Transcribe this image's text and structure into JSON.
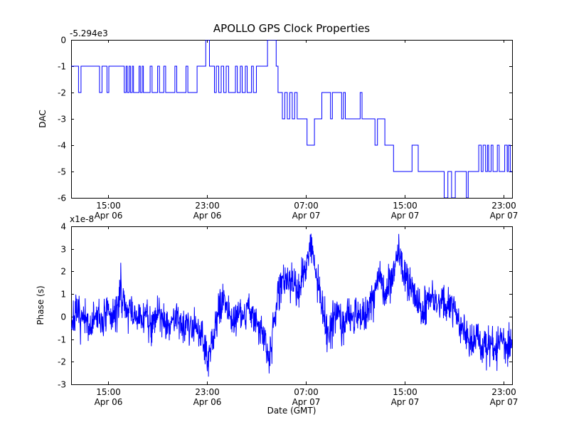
{
  "chart_data": [
    {
      "type": "line",
      "line_style": "step",
      "title": "APOLLO GPS Clock Properties",
      "ylabel": "DAC",
      "axis_offset_label": "-5.294e3",
      "line_color": "#0000ff",
      "xlim": [
        0,
        35.7
      ],
      "ylim": [
        -6,
        0
      ],
      "yticks": [
        0,
        -1,
        -2,
        -3,
        -4,
        -5,
        -6
      ],
      "xticks": [
        {
          "x": 3,
          "time": "15:00",
          "date": "Apr 06"
        },
        {
          "x": 11,
          "time": "23:00",
          "date": "Apr 06"
        },
        {
          "x": 19,
          "time": "07:00",
          "date": "Apr 07"
        },
        {
          "x": 27,
          "time": "15:00",
          "date": "Apr 07"
        },
        {
          "x": 35,
          "time": "23:00",
          "date": "Apr 07"
        }
      ],
      "steps": [
        [
          0,
          -1
        ],
        [
          0.6,
          -2
        ],
        [
          0.8,
          -1
        ],
        [
          2.3,
          -2
        ],
        [
          2.5,
          -1
        ],
        [
          2.9,
          -2
        ],
        [
          3.05,
          -1
        ],
        [
          4.3,
          -2
        ],
        [
          4.45,
          -1
        ],
        [
          4.55,
          -2
        ],
        [
          4.7,
          -1
        ],
        [
          4.8,
          -2
        ],
        [
          4.95,
          -1
        ],
        [
          5.05,
          -2
        ],
        [
          5.5,
          -1
        ],
        [
          5.6,
          -2
        ],
        [
          5.75,
          -1
        ],
        [
          5.85,
          -2
        ],
        [
          6.4,
          -1
        ],
        [
          6.55,
          -2
        ],
        [
          7.0,
          -1
        ],
        [
          7.15,
          -2
        ],
        [
          7.5,
          -1
        ],
        [
          7.65,
          -2
        ],
        [
          8.4,
          -1
        ],
        [
          8.55,
          -2
        ],
        [
          9.3,
          -1
        ],
        [
          9.45,
          -2
        ],
        [
          10.2,
          -1
        ],
        [
          10.9,
          0
        ],
        [
          11.2,
          -1
        ],
        [
          11.6,
          -2
        ],
        [
          11.75,
          -1
        ],
        [
          11.95,
          -2
        ],
        [
          12.15,
          -1
        ],
        [
          12.35,
          -2
        ],
        [
          12.55,
          -1
        ],
        [
          12.75,
          -2
        ],
        [
          13.3,
          -1
        ],
        [
          13.45,
          -2
        ],
        [
          13.7,
          -1
        ],
        [
          13.85,
          -2
        ],
        [
          14.1,
          -1
        ],
        [
          14.25,
          -2
        ],
        [
          14.6,
          -1
        ],
        [
          14.75,
          -2
        ],
        [
          15.0,
          -1
        ],
        [
          15.9,
          0
        ],
        [
          16.6,
          -1
        ],
        [
          16.75,
          -2
        ],
        [
          17.1,
          -3
        ],
        [
          17.3,
          -2
        ],
        [
          17.5,
          -3
        ],
        [
          17.7,
          -2
        ],
        [
          17.9,
          -3
        ],
        [
          18.1,
          -2
        ],
        [
          18.3,
          -3
        ],
        [
          19.1,
          -4
        ],
        [
          19.7,
          -3
        ],
        [
          20.3,
          -2
        ],
        [
          21.0,
          -3
        ],
        [
          21.15,
          -2
        ],
        [
          21.9,
          -3
        ],
        [
          22.05,
          -2
        ],
        [
          22.2,
          -3
        ],
        [
          23.4,
          -2
        ],
        [
          23.55,
          -3
        ],
        [
          24.6,
          -4
        ],
        [
          24.8,
          -3
        ],
        [
          25.4,
          -4
        ],
        [
          26.1,
          -5
        ],
        [
          27.6,
          -4
        ],
        [
          28.1,
          -5
        ],
        [
          30.2,
          -6
        ],
        [
          30.5,
          -5
        ],
        [
          30.8,
          -6
        ],
        [
          31.1,
          -5
        ],
        [
          32.0,
          -6
        ],
        [
          32.15,
          -5
        ],
        [
          33.0,
          -4
        ],
        [
          33.2,
          -5
        ],
        [
          33.35,
          -4
        ],
        [
          33.55,
          -5
        ],
        [
          33.7,
          -4
        ],
        [
          33.8,
          -5
        ],
        [
          34.0,
          -4
        ],
        [
          34.15,
          -5
        ],
        [
          34.5,
          -4
        ],
        [
          34.65,
          -5
        ],
        [
          35.1,
          -4
        ],
        [
          35.3,
          -5
        ],
        [
          35.4,
          -4
        ],
        [
          35.55,
          -5
        ],
        [
          35.7,
          -5
        ]
      ]
    },
    {
      "type": "line",
      "line_style": "noisy",
      "ylabel": "Phase (s)",
      "scale_label": "x1e-8",
      "xlabel": "Date (GMT)",
      "line_color": "#0000ff",
      "xlim": [
        0,
        35.7
      ],
      "ylim": [
        -3,
        4
      ],
      "yticks": [
        4,
        3,
        2,
        1,
        0,
        -1,
        -2,
        -3
      ],
      "xticks": [
        {
          "x": 3,
          "time": "15:00",
          "date": "Apr 06"
        },
        {
          "x": 11,
          "time": "23:00",
          "date": "Apr 06"
        },
        {
          "x": 19,
          "time": "07:00",
          "date": "Apr 07"
        },
        {
          "x": 27,
          "time": "15:00",
          "date": "Apr 07"
        },
        {
          "x": 35,
          "time": "23:00",
          "date": "Apr 07"
        }
      ],
      "base_points": [
        [
          0,
          -0.3
        ],
        [
          0.5,
          0.1
        ],
        [
          1,
          -0.2
        ],
        [
          1.5,
          -0.5
        ],
        [
          2,
          0
        ],
        [
          2.5,
          -0.2
        ],
        [
          3,
          0.1
        ],
        [
          3.5,
          0
        ],
        [
          3.85,
          0.5
        ],
        [
          4,
          1.6
        ],
        [
          4.15,
          0.7
        ],
        [
          4.6,
          0.2
        ],
        [
          5,
          0.1
        ],
        [
          5.5,
          -0.2
        ],
        [
          6,
          0.1
        ],
        [
          6.5,
          -0.3
        ],
        [
          7,
          0.2
        ],
        [
          7.5,
          -0.1
        ],
        [
          8,
          -0.4
        ],
        [
          8.5,
          0
        ],
        [
          9,
          -0.2
        ],
        [
          9.5,
          -0.5
        ],
        [
          10,
          -0.3
        ],
        [
          10.5,
          -0.6
        ],
        [
          11.1,
          -2.1
        ],
        [
          11.5,
          -0.9
        ],
        [
          12,
          0.2
        ],
        [
          12.4,
          1
        ],
        [
          12.8,
          0.2
        ],
        [
          13.2,
          -0.3
        ],
        [
          13.6,
          0.3
        ],
        [
          14,
          0
        ],
        [
          14.4,
          0.5
        ],
        [
          14.8,
          -0.2
        ],
        [
          15.2,
          -0.5
        ],
        [
          15.7,
          -1
        ],
        [
          16,
          -1.9
        ],
        [
          16.3,
          -0.6
        ],
        [
          16.7,
          0.6
        ],
        [
          17.1,
          1.9
        ],
        [
          17.5,
          1.4
        ],
        [
          17.9,
          1.7
        ],
        [
          18.3,
          1.2
        ],
        [
          18.7,
          1.6
        ],
        [
          19.1,
          2.3
        ],
        [
          19.4,
          3.3
        ],
        [
          19.7,
          2.2
        ],
        [
          20,
          1.6
        ],
        [
          20.3,
          0.5
        ],
        [
          20.7,
          -0.7
        ],
        [
          21.1,
          -0.3
        ],
        [
          21.5,
          0.3
        ],
        [
          21.9,
          -0.4
        ],
        [
          22.3,
          0.2
        ],
        [
          22.7,
          -0.2
        ],
        [
          23.1,
          0.3
        ],
        [
          23.5,
          -0.1
        ],
        [
          23.9,
          0.2
        ],
        [
          24.3,
          0.6
        ],
        [
          24.7,
          1.2
        ],
        [
          25,
          2.3
        ],
        [
          25.3,
          1
        ],
        [
          25.7,
          1.4
        ],
        [
          26.1,
          1.9
        ],
        [
          26.5,
          3.2
        ],
        [
          26.8,
          2.2
        ],
        [
          27.2,
          1.6
        ],
        [
          27.6,
          1.2
        ],
        [
          28,
          0.7
        ],
        [
          28.4,
          0.2
        ],
        [
          28.8,
          0.5
        ],
        [
          29.2,
          1
        ],
        [
          29.6,
          0.4
        ],
        [
          30,
          0.8
        ],
        [
          30.4,
          0.3
        ],
        [
          30.8,
          0.6
        ],
        [
          31.2,
          0
        ],
        [
          31.6,
          -0.4
        ],
        [
          32,
          -0.7
        ],
        [
          32.4,
          -1.1
        ],
        [
          32.8,
          -0.8
        ],
        [
          33.2,
          -1.2
        ],
        [
          33.6,
          -1.5
        ],
        [
          34,
          -1
        ],
        [
          34.4,
          -1.6
        ],
        [
          34.8,
          -0.9
        ],
        [
          35.2,
          -1.3
        ],
        [
          35.7,
          -1
        ]
      ],
      "noise": {
        "sigma": 0.42,
        "seed": 7,
        "n": 1600
      }
    }
  ]
}
